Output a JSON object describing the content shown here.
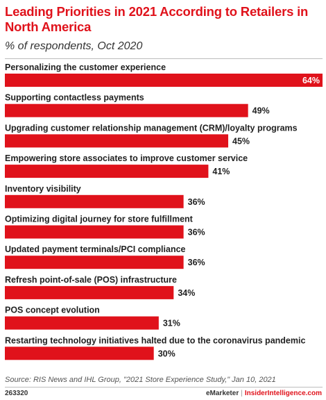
{
  "header": {
    "title": "Leading Priorities in 2021 According to Retailers in North America",
    "subtitle": "% of respondents, Oct 2020"
  },
  "chart_data": {
    "type": "bar",
    "orientation": "horizontal",
    "title": "Leading Priorities in 2021 According to Retailers in North America",
    "subtitle": "% of respondents, Oct 2020",
    "categories": [
      "Personalizing the customer experience",
      "Supporting contactless payments",
      "Upgrading customer relationship management (CRM)/loyalty programs",
      "Empowering store associates to improve customer service",
      "Inventory visibility",
      "Optimizing digital journey for store fulfillment",
      "Updated payment terminals/PCI compliance",
      "Refresh point-of-sale (POS) infrastructure",
      "POS concept evolution",
      "Restarting technology initiatives halted due to the coronavirus pandemic"
    ],
    "values": [
      64,
      49,
      45,
      41,
      36,
      36,
      36,
      34,
      31,
      30
    ],
    "value_labels": [
      "64%",
      "49%",
      "45%",
      "41%",
      "36%",
      "36%",
      "36%",
      "34%",
      "31%",
      "30%"
    ],
    "unit": "%",
    "xlim": [
      0,
      64
    ],
    "bar_color": "#e0121b",
    "grid": false,
    "legend": "none"
  },
  "footer": {
    "source": "Source: RIS News and IHL Group, \"2021 Store Experience Study,\" Jan 10, 2021",
    "chart_id": "263320",
    "brand": "eMarketer",
    "brand2": "InsiderIntelligence.com"
  }
}
